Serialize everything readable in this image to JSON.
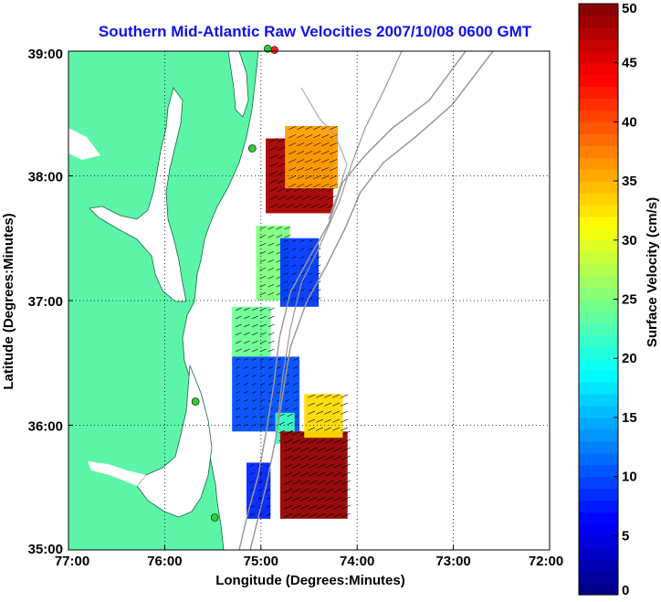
{
  "chart_data": {
    "type": "heatmap",
    "title": "Southern Mid-Atlantic Raw Velocities 2007/10/08 0600 GMT",
    "xlabel": "Longitude (Degrees:Minutes)",
    "ylabel": "Latitude (Degrees:Minutes)",
    "xlim": [
      -77,
      -72
    ],
    "ylim": [
      35,
      39
    ],
    "x_ticks": [
      -77,
      -76,
      -75,
      -74,
      -73,
      -72
    ],
    "x_tick_labels": [
      "77:00",
      "76:00",
      "75:00",
      "74:00",
      "73:00",
      "72:00"
    ],
    "y_ticks": [
      35,
      36,
      37,
      38,
      39
    ],
    "y_tick_labels": [
      "35:00",
      "36:00",
      "37:00",
      "38:00",
      "39:00"
    ],
    "grid": true,
    "colorbar": {
      "label": "Surface Velocity (cm/s)",
      "min": 0,
      "max": 50,
      "ticks": [
        0,
        5,
        10,
        15,
        20,
        25,
        30,
        35,
        40,
        45,
        50
      ],
      "levels": 50
    },
    "velocity_regions": [
      {
        "lon": [
          -74.95,
          -74.25
        ],
        "lat": [
          37.7,
          38.3
        ],
        "speed": 48
      },
      {
        "lon": [
          -74.75,
          -74.2
        ],
        "lat": [
          37.9,
          38.4
        ],
        "speed": 36
      },
      {
        "lon": [
          -75.05,
          -74.7
        ],
        "lat": [
          37.0,
          37.6
        ],
        "speed": 25
      },
      {
        "lon": [
          -74.8,
          -74.4
        ],
        "lat": [
          36.95,
          37.5
        ],
        "speed": 9
      },
      {
        "lon": [
          -75.3,
          -74.9
        ],
        "lat": [
          36.55,
          36.95
        ],
        "speed": 24
      },
      {
        "lon": [
          -75.3,
          -74.6
        ],
        "lat": [
          35.95,
          36.55
        ],
        "speed": 10
      },
      {
        "lon": [
          -74.85,
          -74.65
        ],
        "lat": [
          35.85,
          36.1
        ],
        "speed": 22
      },
      {
        "lon": [
          -74.8,
          -74.1
        ],
        "lat": [
          35.25,
          35.95
        ],
        "speed": 49
      },
      {
        "lon": [
          -75.15,
          -74.9
        ],
        "lat": [
          35.25,
          35.7
        ],
        "speed": 8
      },
      {
        "lon": [
          -74.55,
          -74.15
        ],
        "lat": [
          35.9,
          36.25
        ],
        "speed": 33
      }
    ],
    "hf_radar_sites": [
      {
        "lon": -74.86,
        "lat": 39.01,
        "color": "#ff2020"
      },
      {
        "lon": -74.93,
        "lat": 39.02,
        "color": "#33cc33"
      },
      {
        "lon": -75.09,
        "lat": 38.22,
        "color": "#33cc33"
      },
      {
        "lon": -75.68,
        "lat": 36.19,
        "color": "#33cc33"
      },
      {
        "lon": -75.48,
        "lat": 35.26,
        "color": "#33cc33"
      }
    ]
  }
}
